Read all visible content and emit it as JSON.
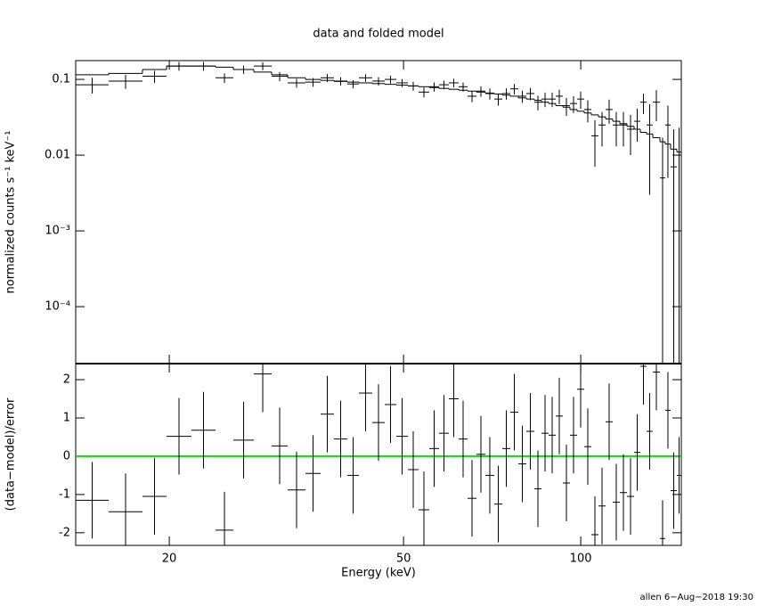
{
  "chart_data": [
    {
      "type": "scatter",
      "title": "data and folded model",
      "ylabel": "normalized counts s⁻¹ keV⁻¹",
      "x_lo": [
        13.87,
        15.78,
        18.01,
        19.79,
        21.81,
        23.97,
        25.7,
        27.84,
        29.85,
        31.78,
        34.07,
        36.15,
        38.09,
        40.13,
        41.99,
        44.24,
        46.46,
        48.61,
        50.86,
        53.03,
        55.29,
        57.46,
        59.7,
        62.03,
        64.23,
        66.51,
        68.86,
        71.3,
        73.58,
        75.92,
        78.34,
        80.84,
        83.41,
        85.77,
        88.19,
        90.68,
        93.24,
        95.87,
        98.58,
        101.37,
        104.23,
        107.18,
        110.21,
        113.31,
        116.52,
        119.82,
        123.2,
        126.25,
        129.37,
        132.56,
        136.3,
        139.17,
        142.11,
        145.62
      ],
      "x_hi": [
        15.78,
        18.01,
        19.79,
        21.81,
        23.97,
        25.7,
        27.84,
        29.85,
        31.78,
        34.07,
        36.15,
        38.09,
        40.13,
        41.99,
        44.24,
        46.46,
        48.61,
        50.86,
        53.03,
        55.29,
        57.46,
        59.7,
        62.03,
        64.23,
        66.51,
        68.86,
        71.3,
        73.58,
        75.92,
        78.34,
        80.84,
        83.41,
        85.77,
        88.19,
        90.68,
        93.24,
        95.87,
        98.58,
        101.37,
        104.23,
        107.18,
        110.21,
        113.31,
        116.52,
        119.82,
        123.2,
        126.25,
        129.37,
        132.56,
        136.3,
        139.17,
        142.11,
        145.62,
        148.19
      ],
      "values": [
        0.085,
        0.095,
        0.11,
        0.15,
        0.15,
        0.105,
        0.135,
        0.15,
        0.11,
        0.09,
        0.092,
        0.105,
        0.095,
        0.087,
        0.105,
        0.095,
        0.1,
        0.09,
        0.082,
        0.068,
        0.08,
        0.085,
        0.09,
        0.08,
        0.06,
        0.07,
        0.065,
        0.055,
        0.065,
        0.075,
        0.06,
        0.065,
        0.05,
        0.055,
        0.055,
        0.06,
        0.045,
        0.048,
        0.055,
        0.04,
        0.018,
        0.025,
        0.04,
        0.025,
        0.025,
        0.022,
        0.028,
        0.05,
        0.025,
        0.05,
        0.005,
        0.025,
        0.007,
        0.011
      ],
      "yerr": [
        0.02,
        0.02,
        0.02,
        0.02,
        0.02,
        0.015,
        0.017,
        0.018,
        0.015,
        0.012,
        0.012,
        0.013,
        0.012,
        0.011,
        0.012,
        0.012,
        0.012,
        0.011,
        0.011,
        0.01,
        0.011,
        0.011,
        0.012,
        0.011,
        0.01,
        0.011,
        0.011,
        0.01,
        0.011,
        0.012,
        0.011,
        0.012,
        0.011,
        0.012,
        0.012,
        0.013,
        0.012,
        0.012,
        0.014,
        0.013,
        0.011,
        0.012,
        0.014,
        0.012,
        0.012,
        0.012,
        0.013,
        0.015,
        0.022,
        0.022,
        0.012,
        0.02,
        0.015,
        0.012
      ],
      "model": [
        0.115,
        0.12,
        0.135,
        0.15,
        0.15,
        0.145,
        0.135,
        0.125,
        0.115,
        0.105,
        0.1,
        0.097,
        0.094,
        0.092,
        0.09,
        0.088,
        0.086,
        0.084,
        0.082,
        0.08,
        0.078,
        0.076,
        0.074,
        0.072,
        0.07,
        0.068,
        0.066,
        0.064,
        0.062,
        0.06,
        0.057,
        0.055,
        0.053,
        0.05,
        0.048,
        0.045,
        0.043,
        0.04,
        0.038,
        0.036,
        0.034,
        0.032,
        0.03,
        0.028,
        0.026,
        0.024,
        0.022,
        0.02,
        0.019,
        0.017,
        0.015,
        0.014,
        0.012,
        0.011
      ],
      "xlim": [
        13.87,
        148.19
      ],
      "xlog": true,
      "ylog": true,
      "ylim": [
        1.77e-05,
        0.177
      ],
      "yticks": [
        0.1,
        0.01,
        {
          "value": 0.001,
          "label": "10⁻³"
        },
        {
          "value": 0.0001,
          "label": "10⁻⁴"
        }
      ]
    },
    {
      "type": "scatter",
      "ylabel": "(data−model)/error",
      "xlabel": "Energy (keV)",
      "values": [
        -1.15,
        -1.45,
        -1.05,
        0.52,
        0.68,
        -1.93,
        0.42,
        2.15,
        0.27,
        -0.88,
        -0.45,
        1.1,
        0.45,
        -0.5,
        1.65,
        0.88,
        1.35,
        0.52,
        -0.35,
        -1.4,
        0.2,
        0.6,
        1.5,
        0.45,
        -1.1,
        0.05,
        -0.5,
        -1.25,
        0.2,
        1.15,
        -0.2,
        0.65,
        -0.85,
        0.6,
        0.55,
        1.05,
        -0.7,
        0.55,
        1.75,
        0.25,
        -2.05,
        -1.3,
        0.9,
        -1.2,
        -0.95,
        -1.05,
        0.1,
        2.35,
        0.65,
        2.2,
        -2.15,
        1.2,
        -0.9,
        -0.5
      ],
      "yerr": [
        1,
        1,
        1,
        1,
        1,
        1,
        1,
        1,
        1,
        1,
        1,
        1,
        1,
        1,
        1,
        1,
        1,
        1,
        1,
        1,
        1,
        1,
        1,
        1,
        1,
        1,
        1,
        1,
        1,
        1,
        1,
        1,
        1,
        1,
        1,
        1,
        1,
        1,
        1,
        1,
        1,
        1,
        1,
        1,
        1,
        1,
        1,
        1,
        1,
        1,
        1,
        1,
        1,
        1
      ],
      "xlim": [
        13.87,
        148.19
      ],
      "xlog": true,
      "xticks": [
        20,
        50,
        100
      ],
      "ylim": [
        -2.33,
        2.42
      ],
      "yticks": [
        -2,
        -1,
        0,
        1,
        2
      ],
      "hline": 0,
      "hline_color": "#00e000"
    }
  ],
  "footer": "allen  6−Aug−2018 19:30"
}
